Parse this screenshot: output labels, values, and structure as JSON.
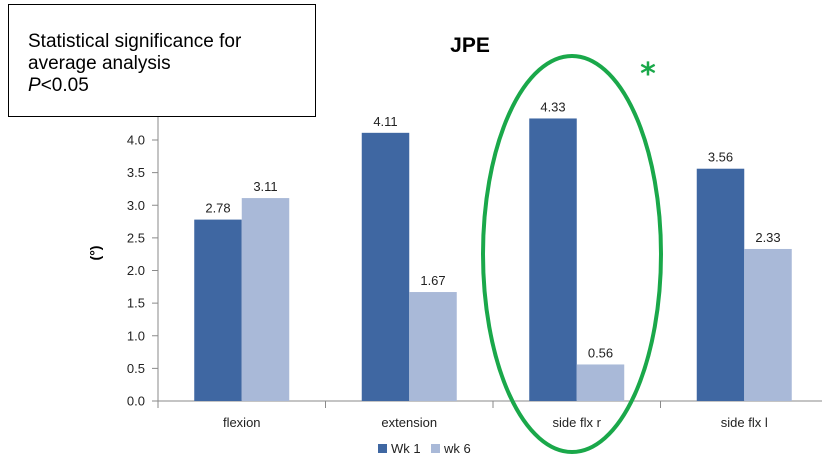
{
  "chart_data": {
    "type": "bar",
    "title": "JPE",
    "ylabel": "(°)",
    "xlabel": "",
    "ylim": [
      0,
      4.5
    ],
    "yticks": [
      "0.0",
      "0.5",
      "1.0",
      "1.5",
      "2.0",
      "2.5",
      "3.0",
      "3.5",
      "4.0"
    ],
    "categories": [
      "flexion",
      "extension",
      "side flx r",
      "side flx l"
    ],
    "series": [
      {
        "name": "Wk 1",
        "values": [
          2.78,
          4.11,
          4.33,
          3.56
        ],
        "labels": [
          "2.78",
          "4.11",
          "4.33",
          "3.56"
        ],
        "color": "#3f67a2"
      },
      {
        "name": "wk 6",
        "values": [
          3.11,
          1.67,
          0.56,
          2.33
        ],
        "labels": [
          "3.11",
          "1.67",
          "0.56",
          "2.33"
        ],
        "color": "#a9b9d8"
      }
    ],
    "grid": false,
    "legend_position": "bottom",
    "annotation": {
      "highlight_category": "side flx r",
      "highlight_color": "#1aa84a",
      "marker": "*",
      "note_lines": [
        "Statistical significance for",
        "average analysis"
      ],
      "note_p": "P",
      "note_threshold": "<0.05"
    }
  }
}
